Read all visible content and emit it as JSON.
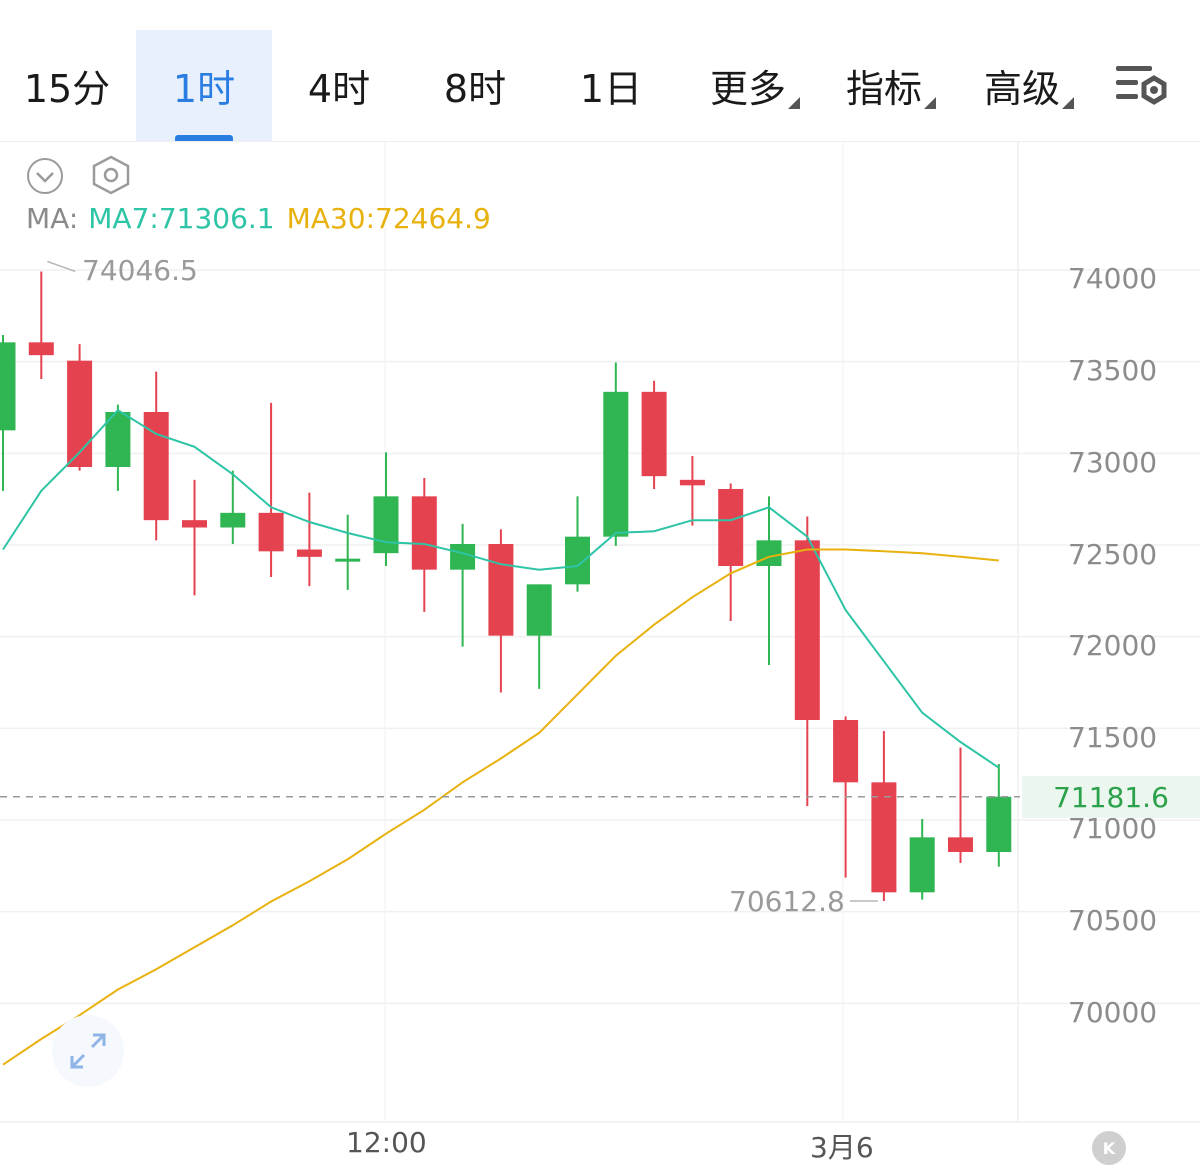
{
  "tabs": [
    {
      "label": "15分",
      "active": false
    },
    {
      "label": "1时",
      "active": true
    },
    {
      "label": "4时",
      "active": false
    },
    {
      "label": "8时",
      "active": false
    },
    {
      "label": "1日",
      "active": false
    }
  ],
  "dropdowns": [
    {
      "label": "更多"
    },
    {
      "label": "指标"
    },
    {
      "label": "高级"
    }
  ],
  "ma": {
    "label": "MA:",
    "ma7": "MA7:71306.1",
    "ma30": "MA30:72464.9"
  },
  "current_price": "71181.6",
  "high_label": "74046.5",
  "low_label": "70612.8",
  "k_button": "K",
  "colors": {
    "up": "#2fb552",
    "down": "#e5424f",
    "ma7": "#2ec4a6",
    "ma30": "#e8b10d",
    "accent": "#2a7de1"
  },
  "icons": [
    "settings-icon",
    "collapse-icon",
    "hexagon-icon",
    "expand-icon"
  ],
  "chart_data": {
    "type": "candlestick",
    "x_tick_labels": [
      "12:00",
      "3月6"
    ],
    "y_ticks": [
      74000,
      73500,
      73000,
      72500,
      72000,
      71500,
      71000,
      70500,
      70000
    ],
    "ylim": [
      69550,
      74600
    ],
    "grid": true,
    "candles": [
      {
        "o": 73180,
        "h": 73700,
        "l": 72850,
        "c": 73660
      },
      {
        "o": 73660,
        "h": 74046.5,
        "l": 73460,
        "c": 73590
      },
      {
        "o": 73560,
        "h": 73650,
        "l": 72960,
        "c": 72980
      },
      {
        "o": 72980,
        "h": 73320,
        "l": 72850,
        "c": 73280
      },
      {
        "o": 73280,
        "h": 73500,
        "l": 72580,
        "c": 72690
      },
      {
        "o": 72690,
        "h": 72910,
        "l": 72280,
        "c": 72650
      },
      {
        "o": 72650,
        "h": 72960,
        "l": 72560,
        "c": 72730
      },
      {
        "o": 72730,
        "h": 73330,
        "l": 72380,
        "c": 72520
      },
      {
        "o": 72530,
        "h": 72840,
        "l": 72330,
        "c": 72490
      },
      {
        "o": 72480,
        "h": 72720,
        "l": 72310,
        "c": 72480
      },
      {
        "o": 72510,
        "h": 73060,
        "l": 72440,
        "c": 72820
      },
      {
        "o": 72820,
        "h": 72920,
        "l": 72190,
        "c": 72420
      },
      {
        "o": 72420,
        "h": 72670,
        "l": 72000,
        "c": 72560
      },
      {
        "o": 72560,
        "h": 72640,
        "l": 71750,
        "c": 72060
      },
      {
        "o": 72060,
        "h": 72340,
        "l": 71770,
        "c": 72340
      },
      {
        "o": 72340,
        "h": 72820,
        "l": 72300,
        "c": 72600
      },
      {
        "o": 72600,
        "h": 73550,
        "l": 72550,
        "c": 73390
      },
      {
        "o": 73390,
        "h": 73450,
        "l": 72860,
        "c": 72930
      },
      {
        "o": 72910,
        "h": 73040,
        "l": 72660,
        "c": 72880
      },
      {
        "o": 72860,
        "h": 72890,
        "l": 72140,
        "c": 72440
      },
      {
        "o": 72440,
        "h": 72820,
        "l": 71900,
        "c": 72580
      },
      {
        "o": 72580,
        "h": 72710,
        "l": 71130,
        "c": 71600
      },
      {
        "o": 71600,
        "h": 71620,
        "l": 70740,
        "c": 71260
      },
      {
        "o": 71260,
        "h": 71540,
        "l": 70612.8,
        "c": 70660
      },
      {
        "o": 70660,
        "h": 71060,
        "l": 70620,
        "c": 70960
      },
      {
        "o": 70960,
        "h": 71450,
        "l": 70820,
        "c": 70880
      },
      {
        "o": 70880,
        "h": 71360,
        "l": 70800,
        "c": 71181.6
      }
    ],
    "series": [
      {
        "name": "MA7",
        "values": [
          72530,
          72850,
          73060,
          73290,
          73160,
          73090,
          72940,
          72760,
          72680,
          72620,
          72570,
          72560,
          72510,
          72450,
          72420,
          72440,
          72620,
          72630,
          72690,
          72690,
          72760,
          72600,
          72200,
          71920,
          71640,
          71480,
          71340
        ]
      },
      {
        "name": "MA30",
        "values": [
          69720,
          69860,
          69990,
          70130,
          70240,
          70360,
          70480,
          70610,
          70720,
          70840,
          70980,
          71110,
          71260,
          71390,
          71530,
          71740,
          71950,
          72120,
          72270,
          72400,
          72490,
          72530,
          72530,
          72520,
          72510,
          72490,
          72470
        ]
      }
    ]
  }
}
